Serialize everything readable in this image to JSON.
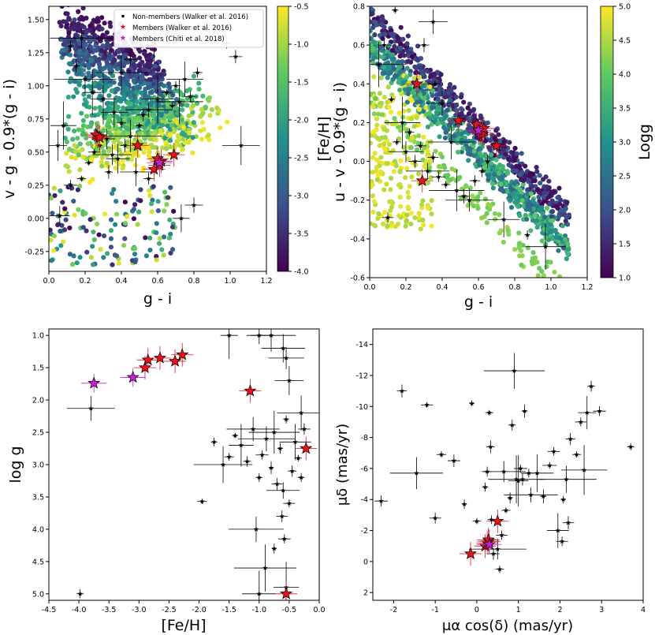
{
  "colors": {
    "member_walker": "#e8101a",
    "member_chiti": "#c21fd6",
    "nonmember": "#000000",
    "axis": "#000000"
  },
  "chart_data": [
    {
      "type": "scatter",
      "panel": "top-left",
      "xlabel": "g - i",
      "ylabel": "v - g - 0.9*(g - i)",
      "xlim": [
        0,
        1.2
      ],
      "ylim": [
        1.6,
        -0.4
      ],
      "xticks": [
        "0.0",
        "0.2",
        "0.4",
        "0.6",
        "0.8",
        "1.0",
        "1.2"
      ],
      "xtick_values": [
        0,
        0.2,
        0.4,
        0.6,
        0.8,
        1.0,
        1.2
      ],
      "yticks": [
        "-0.25",
        "0.00",
        "0.25",
        "0.50",
        "0.75",
        "1.00",
        "1.25",
        "1.50"
      ],
      "ytick_values": [
        -0.25,
        0,
        0.25,
        0.5,
        0.75,
        1.0,
        1.25,
        1.5
      ],
      "colorbar": {
        "label": "[Fe/H]",
        "min": -4.0,
        "max": -0.5,
        "ticks": [
          "-0.5",
          "-1.0",
          "-1.5",
          "-2.0",
          "-2.5",
          "-3.0",
          "-3.5",
          "-4.0"
        ],
        "tick_values": [
          -0.5,
          -1.0,
          -1.5,
          -2.0,
          -2.5,
          -3.0,
          -3.5,
          -4.0
        ]
      },
      "legend": {
        "position": "top-right",
        "entries": [
          {
            "label": "Non-members (Walker et al. 2016)",
            "marker": "dot",
            "color": "#000000"
          },
          {
            "label": "Members (Walker et al. 2016)",
            "marker": "star",
            "color": "#e8101a"
          },
          {
            "label": "Members (Chiti et al. 2018)",
            "marker": "star",
            "color": "#c21fd6"
          }
        ]
      },
      "members_walker": [
        [
          0.27,
          0.62
        ],
        [
          0.26,
          0.63
        ],
        [
          0.28,
          0.61
        ],
        [
          0.49,
          0.55
        ],
        [
          0.58,
          0.37
        ],
        [
          0.61,
          0.4
        ],
        [
          0.62,
          0.43
        ],
        [
          0.69,
          0.48
        ],
        [
          0.6,
          0.45
        ]
      ],
      "members_chiti": [
        [
          0.61,
          0.42
        ]
      ],
      "nonmembers": [
        [
          0.06,
          0.02
        ],
        [
          0.12,
          0.25
        ],
        [
          0.18,
          0.3
        ],
        [
          0.22,
          0.42
        ],
        [
          0.25,
          0.5
        ],
        [
          0.28,
          0.55
        ],
        [
          0.32,
          0.6
        ],
        [
          0.35,
          0.48
        ],
        [
          0.38,
          0.45
        ],
        [
          0.42,
          0.55
        ],
        [
          0.45,
          0.62
        ],
        [
          0.5,
          0.7
        ],
        [
          0.52,
          0.78
        ],
        [
          0.55,
          0.82
        ],
        [
          0.6,
          0.9
        ],
        [
          0.65,
          0.95
        ],
        [
          0.7,
          1.0
        ],
        [
          0.75,
          1.05
        ],
        [
          0.78,
          0.92
        ],
        [
          0.82,
          1.1
        ],
        [
          0.72,
          0.88
        ],
        [
          0.68,
          0.85
        ],
        [
          0.4,
          0.72
        ],
        [
          0.36,
          0.8
        ],
        [
          0.3,
          0.9
        ],
        [
          0.24,
          0.95
        ],
        [
          0.2,
          1.05
        ],
        [
          0.15,
          1.15
        ],
        [
          0.12,
          1.3
        ],
        [
          0.18,
          1.36
        ],
        [
          0.4,
          1.1
        ],
        [
          0.45,
          1.2
        ],
        [
          0.58,
          1.3
        ],
        [
          0.8,
          0.1
        ],
        [
          0.73,
          0.0
        ],
        [
          0.98,
          1.32
        ],
        [
          1.03,
          1.22
        ],
        [
          1.06,
          0.55
        ],
        [
          0.48,
          0.35
        ],
        [
          0.55,
          0.3
        ],
        [
          0.33,
          0.35
        ],
        [
          0.05,
          0.55
        ],
        [
          0.08,
          0.7
        ]
      ]
    },
    {
      "type": "scatter",
      "panel": "top-right",
      "xlabel": "g - i",
      "ylabel": "u - v - 0.9*(g - i)",
      "xlim": [
        0,
        1.2
      ],
      "ylim": [
        0.8,
        -0.6
      ],
      "xticks": [
        "0.0",
        "0.2",
        "0.4",
        "0.6",
        "0.8",
        "1.0",
        "1.2"
      ],
      "xtick_values": [
        0,
        0.2,
        0.4,
        0.6,
        0.8,
        1.0,
        1.2
      ],
      "yticks": [
        "-0.6",
        "-0.4",
        "-0.2",
        "0.0",
        "0.2",
        "0.4",
        "0.6",
        "0.8"
      ],
      "ytick_values": [
        -0.6,
        -0.4,
        -0.2,
        0,
        0.2,
        0.4,
        0.6,
        0.8
      ],
      "colorbar": {
        "label": "Logg",
        "min": 1.0,
        "max": 5.0,
        "ticks": [
          "5.0",
          "4.5",
          "4.0",
          "3.5",
          "3.0",
          "2.5",
          "2.0",
          "1.5",
          "1.0"
        ],
        "tick_values": [
          5.0,
          4.5,
          4.0,
          3.5,
          3.0,
          2.5,
          2.0,
          1.5,
          1.0
        ]
      },
      "members_walker": [
        [
          0.29,
          -0.1
        ],
        [
          0.26,
          0.4
        ],
        [
          0.49,
          0.21
        ],
        [
          0.59,
          0.19
        ],
        [
          0.61,
          0.15
        ],
        [
          0.62,
          0.14
        ],
        [
          0.63,
          0.17
        ],
        [
          0.7,
          0.08
        ]
      ],
      "members_chiti": [
        [
          0.6,
          0.16
        ]
      ],
      "nonmembers": [
        [
          0.1,
          -0.29
        ],
        [
          0.12,
          0.32
        ],
        [
          0.15,
          0.1
        ],
        [
          0.18,
          0.2
        ],
        [
          0.2,
          0.05
        ],
        [
          0.22,
          0.15
        ],
        [
          0.25,
          0.0
        ],
        [
          0.28,
          0.08
        ],
        [
          0.32,
          -0.05
        ],
        [
          0.35,
          0.02
        ],
        [
          0.38,
          -0.08
        ],
        [
          0.42,
          -0.12
        ],
        [
          0.45,
          0.1
        ],
        [
          0.48,
          -0.15
        ],
        [
          0.52,
          -0.18
        ],
        [
          0.55,
          -0.2
        ],
        [
          0.58,
          -0.1
        ],
        [
          0.62,
          -0.05
        ],
        [
          0.65,
          0.0
        ],
        [
          0.4,
          0.3
        ],
        [
          0.36,
          0.4
        ],
        [
          0.05,
          0.5
        ],
        [
          0.08,
          0.6
        ],
        [
          0.3,
          0.6
        ],
        [
          0.35,
          0.72
        ],
        [
          0.97,
          -0.44
        ],
        [
          0.87,
          -0.38
        ],
        [
          0.74,
          -0.3
        ],
        [
          0.14,
          0.78
        ]
      ]
    },
    {
      "type": "scatter",
      "panel": "bottom-left",
      "xlabel": "[Fe/H]",
      "ylabel": "log g",
      "xlim": [
        -4.5,
        0.0
      ],
      "ylim": [
        0.9,
        5.1
      ],
      "xticks": [
        "-4.5",
        "-4.0",
        "-3.5",
        "-3.0",
        "-2.5",
        "-2.0",
        "-1.5",
        "-1.0",
        "-0.5",
        "0.0"
      ],
      "xtick_values": [
        -4.5,
        -4.0,
        -3.5,
        -3.0,
        -2.5,
        -2.0,
        -1.5,
        -1.0,
        -0.5,
        0.0
      ],
      "yticks": [
        "1.0",
        "1.5",
        "2.0",
        "2.5",
        "3.0",
        "3.5",
        "4.0",
        "4.5",
        "5.0"
      ],
      "ytick_values": [
        1.0,
        1.5,
        2.0,
        2.5,
        3.0,
        3.5,
        4.0,
        4.5,
        5.0
      ],
      "members_walker": [
        [
          -0.55,
          5.0
        ],
        [
          -0.22,
          2.75
        ],
        [
          -1.15,
          1.86
        ],
        [
          -2.9,
          1.5
        ],
        [
          -2.85,
          1.38
        ],
        [
          -2.65,
          1.35
        ],
        [
          -2.4,
          1.4
        ],
        [
          -2.28,
          1.3
        ]
      ],
      "members_chiti": [
        [
          -3.75,
          1.74
        ],
        [
          -3.1,
          1.65
        ]
      ],
      "nonmembers": [
        [
          -3.98,
          5.0
        ],
        [
          -3.8,
          2.13
        ],
        [
          -1.95,
          3.57
        ],
        [
          -1.75,
          2.65
        ],
        [
          -1.6,
          3.0
        ],
        [
          -1.5,
          2.88
        ],
        [
          -1.4,
          2.55
        ],
        [
          -1.3,
          2.7
        ],
        [
          -1.2,
          2.95
        ],
        [
          -1.1,
          2.45
        ],
        [
          -1.0,
          3.2
        ],
        [
          -0.95,
          2.85
        ],
        [
          -0.88,
          2.6
        ],
        [
          -0.8,
          3.05
        ],
        [
          -0.75,
          2.5
        ],
        [
          -0.7,
          3.3
        ],
        [
          -0.65,
          2.75
        ],
        [
          -0.6,
          3.4
        ],
        [
          -0.55,
          2.3
        ],
        [
          -0.5,
          3.6
        ],
        [
          -0.45,
          3.1
        ],
        [
          -0.4,
          2.65
        ],
        [
          -0.35,
          2.9
        ],
        [
          -0.3,
          3.2
        ],
        [
          -0.25,
          2.45
        ],
        [
          -0.3,
          2.2
        ],
        [
          -0.5,
          1.7
        ],
        [
          -0.6,
          1.2
        ],
        [
          -0.55,
          1.35
        ],
        [
          -0.8,
          1.0
        ],
        [
          -1.0,
          1.0
        ],
        [
          -1.5,
          1.0
        ],
        [
          -1.05,
          4.0
        ],
        [
          -0.9,
          4.6
        ],
        [
          -0.75,
          4.3
        ],
        [
          -0.55,
          4.9
        ],
        [
          -0.58,
          4.15
        ],
        [
          -0.62,
          3.8
        ],
        [
          -1.0,
          5.0
        ]
      ]
    },
    {
      "type": "scatter",
      "panel": "bottom-right",
      "xlabel": "μα cos(δ) (mas/yr)",
      "ylabel": "μδ (mas/yr)",
      "xlim": [
        -2.5,
        4.0
      ],
      "ylim": [
        -15.0,
        2.5
      ],
      "xticks": [
        "-2",
        "-1",
        "0",
        "1",
        "2",
        "3",
        "4"
      ],
      "xtick_values": [
        -2,
        -1,
        0,
        1,
        2,
        3,
        4
      ],
      "yticks": [
        "2",
        "0",
        "-2",
        "-4",
        "-6",
        "-8",
        "-10",
        "-12",
        "-14"
      ],
      "ytick_values": [
        2,
        0,
        -2,
        -4,
        -6,
        -8,
        -10,
        -12,
        -14
      ],
      "members_walker": [
        [
          -0.15,
          -0.5
        ],
        [
          0.2,
          -1.0
        ],
        [
          0.25,
          -1.2
        ],
        [
          0.3,
          -1.3
        ],
        [
          0.28,
          -1.4
        ],
        [
          0.5,
          -2.6
        ]
      ],
      "members_chiti": [
        [
          0.3,
          -1.1
        ]
      ],
      "nonmembers": [
        [
          -2.3,
          -3.9
        ],
        [
          -1.8,
          -11.0
        ],
        [
          -1.45,
          -5.7
        ],
        [
          -1.2,
          -10.1
        ],
        [
          -1.0,
          -2.8
        ],
        [
          -0.85,
          -6.9
        ],
        [
          -0.55,
          -6.5
        ],
        [
          -0.3,
          -3.7
        ],
        [
          -0.12,
          -10.2
        ],
        [
          0.0,
          -2.6
        ],
        [
          0.2,
          -4.8
        ],
        [
          0.25,
          -5.8
        ],
        [
          0.3,
          -9.6
        ],
        [
          0.33,
          -7.4
        ],
        [
          0.4,
          -0.5
        ],
        [
          0.5,
          -0.8
        ],
        [
          0.55,
          0.5
        ],
        [
          0.6,
          -1.7
        ],
        [
          0.65,
          -5.8
        ],
        [
          0.7,
          -3.3
        ],
        [
          0.8,
          -4.1
        ],
        [
          0.85,
          -8.8
        ],
        [
          0.9,
          -12.3
        ],
        [
          0.95,
          -5.3
        ],
        [
          1.0,
          -5.2
        ],
        [
          1.05,
          -6.0
        ],
        [
          1.1,
          -5.3
        ],
        [
          1.15,
          -9.7
        ],
        [
          1.25,
          -5.7
        ],
        [
          1.3,
          -4.3
        ],
        [
          1.45,
          -5.7
        ],
        [
          1.6,
          -4.2
        ],
        [
          1.75,
          -6.2
        ],
        [
          1.85,
          -7.1
        ],
        [
          1.95,
          -2.0
        ],
        [
          2.05,
          -1.3
        ],
        [
          2.08,
          -4.0
        ],
        [
          2.15,
          -5.3
        ],
        [
          2.2,
          -2.5
        ],
        [
          2.25,
          -7.9
        ],
        [
          2.4,
          -6.9
        ],
        [
          2.5,
          -9.0
        ],
        [
          2.58,
          -5.9
        ],
        [
          2.65,
          -9.6
        ],
        [
          2.75,
          -11.3
        ],
        [
          2.95,
          -9.7
        ],
        [
          3.7,
          -7.4
        ],
        [
          0.35,
          -2.7
        ]
      ]
    }
  ]
}
